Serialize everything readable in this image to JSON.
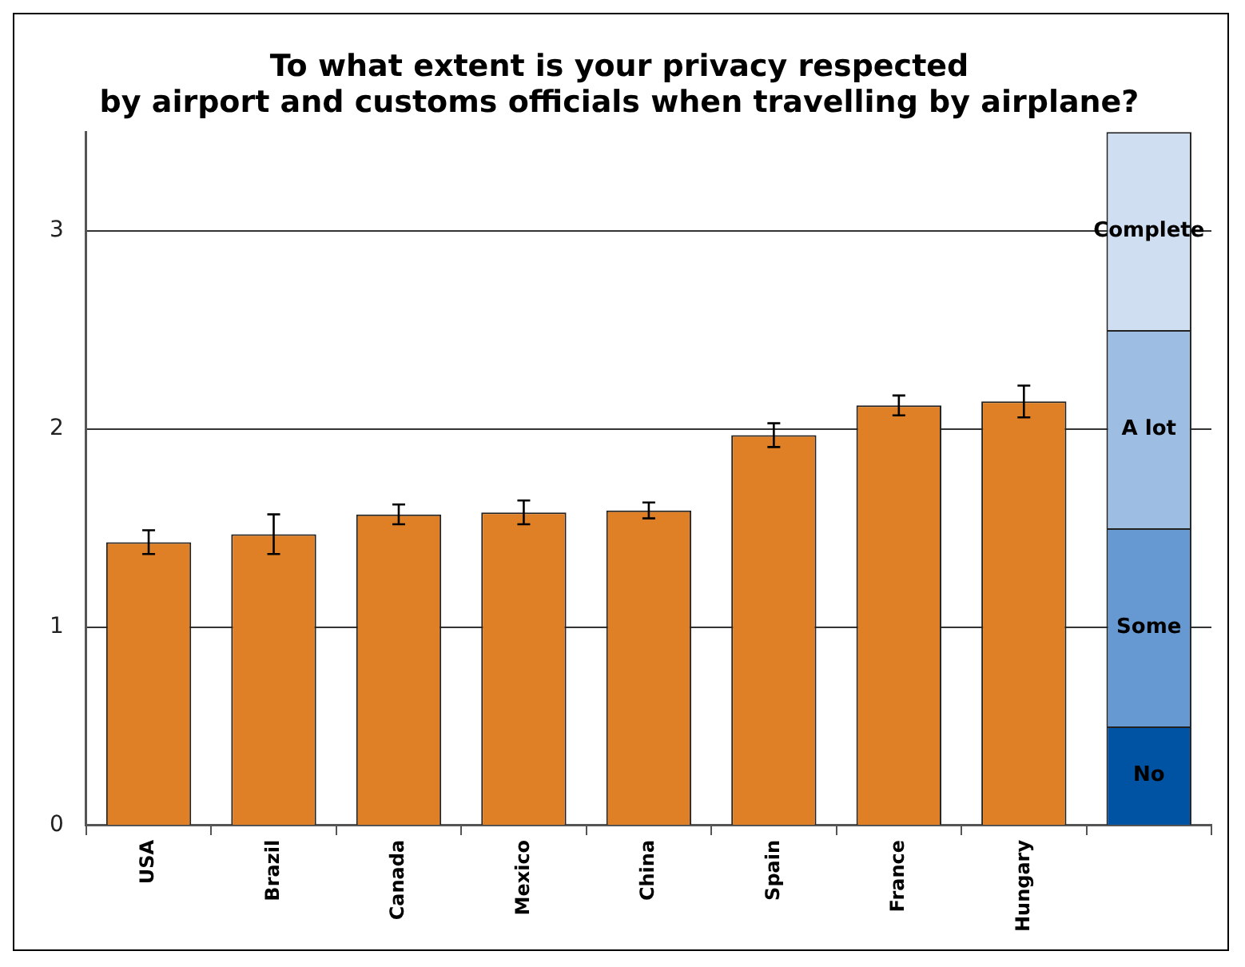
{
  "chart_data": {
    "type": "bar",
    "title": "To what extent is your privacy respected\nby airport and customs officials when travelling by airplane?",
    "categories": [
      "USA",
      "Brazil",
      "Canada",
      "Mexico",
      "China",
      "Spain",
      "France",
      "Hungary",
      null
    ],
    "stacked": true,
    "series": [
      {
        "color": "#e08026",
        "values": [
          1.43,
          1.47,
          1.57,
          1.58,
          1.59,
          1.97,
          2.12,
          2.14,
          null
        ],
        "errors": [
          0.06,
          0.1,
          0.05,
          0.06,
          0.04,
          0.06,
          0.05,
          0.08,
          null
        ]
      },
      {
        "name": "No",
        "color": "#0052a2",
        "values": [
          null,
          null,
          null,
          null,
          null,
          null,
          null,
          null,
          0.5
        ]
      },
      {
        "name": "Some",
        "color": "#6699d2",
        "values": [
          null,
          null,
          null,
          null,
          null,
          null,
          null,
          null,
          1
        ]
      },
      {
        "name": "A lot",
        "color": "#9ebde2",
        "values": [
          null,
          null,
          null,
          null,
          null,
          null,
          null,
          null,
          1
        ]
      },
      {
        "name": "Complete",
        "color": "#cfdef0",
        "values": [
          null,
          null,
          null,
          null,
          null,
          null,
          null,
          null,
          1
        ]
      }
    ],
    "ylim": [
      0,
      3.5
    ],
    "yticks": [
      0,
      1,
      2,
      3
    ],
    "grid": "y",
    "legend": false
  }
}
